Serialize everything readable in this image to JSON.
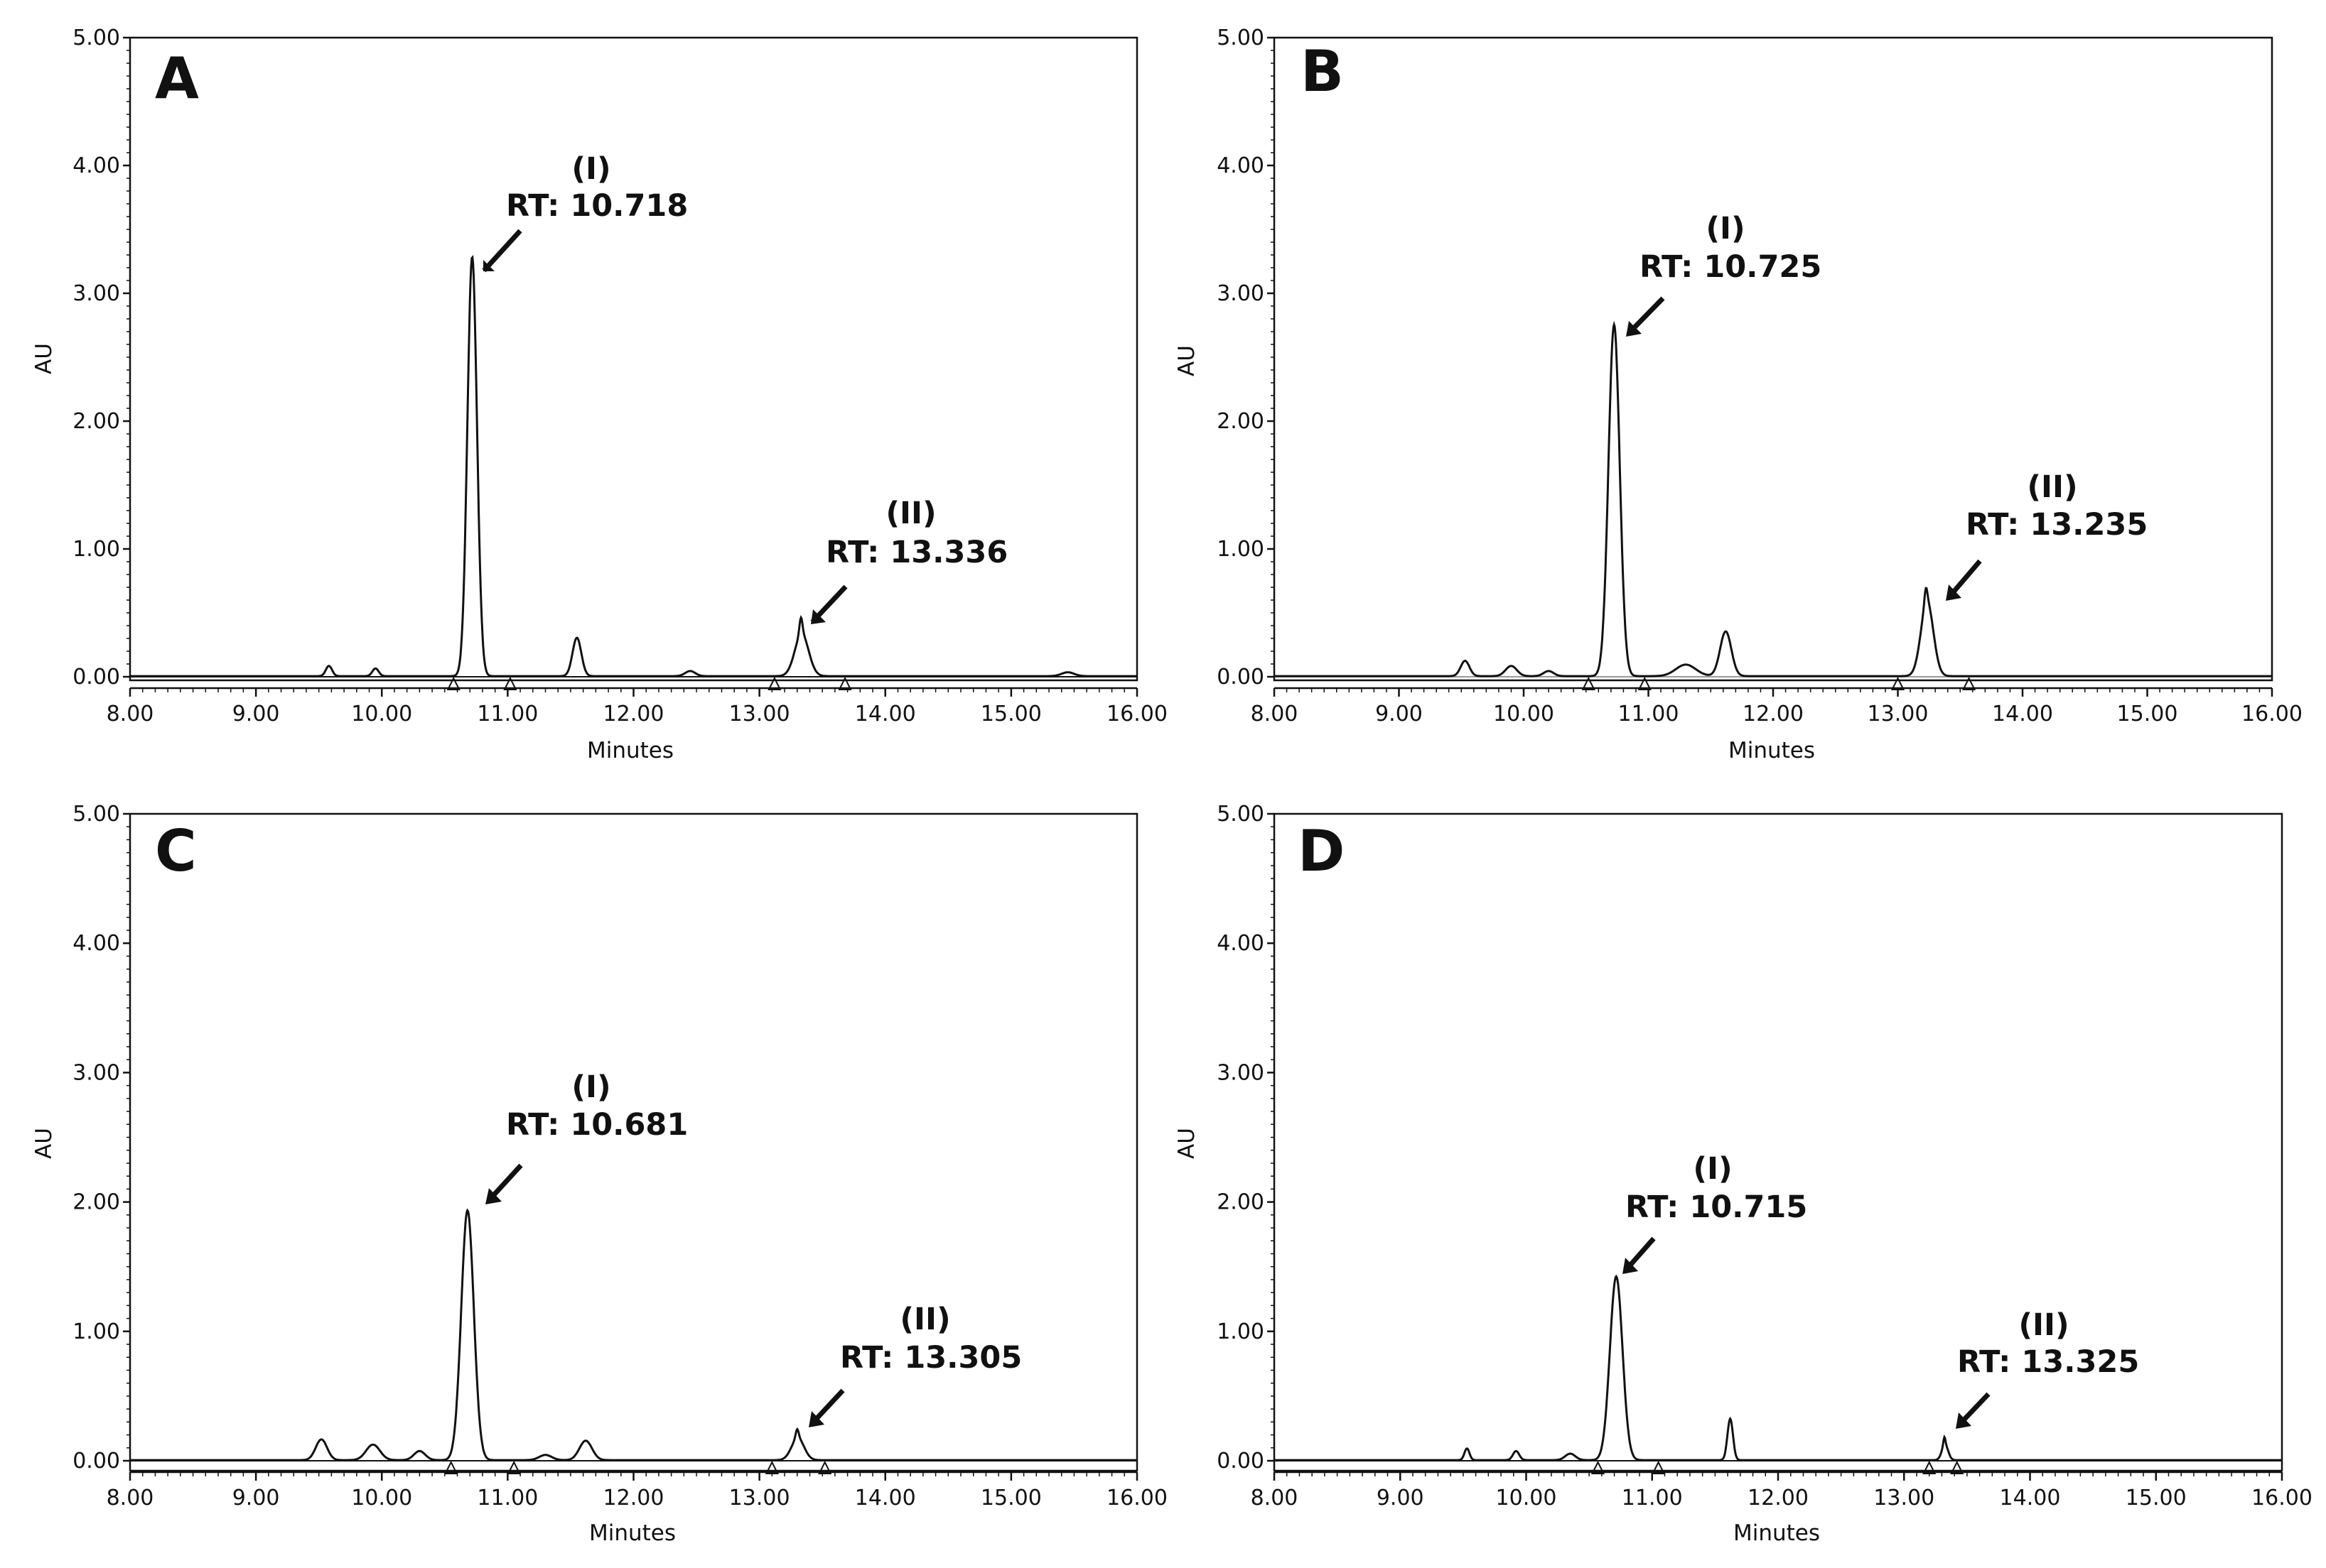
{
  "chart_data": [
    {
      "type": "line",
      "panel": "A",
      "xlabel": "Minutes",
      "ylabel": "AU",
      "xlim": [
        8.0,
        16.0
      ],
      "ylim": [
        0.0,
        5.0
      ],
      "xticks": [
        "8.00",
        "9.00",
        "10.00",
        "11.00",
        "12.00",
        "13.00",
        "14.00",
        "15.00",
        "16.00"
      ],
      "yticks": [
        "0.00",
        "1.00",
        "2.00",
        "3.00",
        "4.00",
        "5.00"
      ],
      "peaks": [
        {
          "rt": 9.58,
          "height": 0.08,
          "width": 0.025
        },
        {
          "rt": 9.95,
          "height": 0.06,
          "width": 0.025
        },
        {
          "rt": 10.718,
          "height": 3.28,
          "width": 0.038
        },
        {
          "rt": 11.55,
          "height": 0.3,
          "width": 0.035
        },
        {
          "rt": 12.45,
          "height": 0.04,
          "width": 0.04
        },
        {
          "rt": 13.336,
          "height": 0.33,
          "width": 0.055
        },
        {
          "rt": 13.33,
          "height": 0.13,
          "width": 0.012
        },
        {
          "rt": 15.45,
          "height": 0.03,
          "width": 0.05
        }
      ],
      "integration_marks": [
        10.57,
        11.02,
        13.12,
        13.68
      ],
      "annotations": [
        {
          "label": "(I)",
          "rt_label": "RT: 10.718",
          "rt": 10.718
        },
        {
          "label": "(II)",
          "rt_label": "RT: 13.336",
          "rt": 13.336
        }
      ]
    },
    {
      "type": "line",
      "panel": "B",
      "xlabel": "Minutes",
      "ylabel": "AU",
      "xlim": [
        8.0,
        16.0
      ],
      "ylim": [
        0.0,
        5.0
      ],
      "xticks": [
        "8.00",
        "9.00",
        "10.00",
        "11.00",
        "12.00",
        "13.00",
        "14.00",
        "15.00",
        "16.00"
      ],
      "yticks": [
        "0.00",
        "1.00",
        "2.00",
        "3.00",
        "4.00",
        "5.00"
      ],
      "peaks": [
        {
          "rt": 9.53,
          "height": 0.12,
          "width": 0.035
        },
        {
          "rt": 9.9,
          "height": 0.08,
          "width": 0.045
        },
        {
          "rt": 10.2,
          "height": 0.04,
          "width": 0.04
        },
        {
          "rt": 10.725,
          "height": 2.75,
          "width": 0.045
        },
        {
          "rt": 11.3,
          "height": 0.09,
          "width": 0.08
        },
        {
          "rt": 11.62,
          "height": 0.35,
          "width": 0.045
        },
        {
          "rt": 13.235,
          "height": 0.58,
          "width": 0.05
        },
        {
          "rt": 13.225,
          "height": 0.12,
          "width": 0.012
        }
      ],
      "integration_marks": [
        10.52,
        10.97,
        13.0,
        13.57
      ],
      "annotations": [
        {
          "label": "(I)",
          "rt_label": "RT: 10.725",
          "rt": 10.725
        },
        {
          "label": "(II)",
          "rt_label": "RT: 13.235",
          "rt": 13.235
        }
      ]
    },
    {
      "type": "line",
      "panel": "C",
      "xlabel": "Minutes",
      "ylabel": "AU",
      "xlim": [
        8.0,
        16.0
      ],
      "ylim": [
        0.0,
        5.0
      ],
      "xticks": [
        "8.00",
        "9.00",
        "10.00",
        "11.00",
        "12.00",
        "13.00",
        "14.00",
        "15.00",
        "16.00"
      ],
      "yticks": [
        "0.00",
        "1.00",
        "2.00",
        "3.00",
        "4.00",
        "5.00"
      ],
      "peaks": [
        {
          "rt": 9.52,
          "height": 0.16,
          "width": 0.045
        },
        {
          "rt": 9.93,
          "height": 0.12,
          "width": 0.055
        },
        {
          "rt": 10.3,
          "height": 0.07,
          "width": 0.045
        },
        {
          "rt": 10.681,
          "height": 1.93,
          "width": 0.05
        },
        {
          "rt": 11.3,
          "height": 0.04,
          "width": 0.05
        },
        {
          "rt": 11.62,
          "height": 0.15,
          "width": 0.05
        },
        {
          "rt": 13.305,
          "height": 0.17,
          "width": 0.05
        },
        {
          "rt": 13.3,
          "height": 0.07,
          "width": 0.012
        }
      ],
      "integration_marks": [
        10.55,
        11.05,
        13.1,
        13.52
      ],
      "annotations": [
        {
          "label": "(I)",
          "rt_label": "RT: 10.681",
          "rt": 10.681
        },
        {
          "label": "(II)",
          "rt_label": "RT: 13.305",
          "rt": 13.305
        }
      ]
    },
    {
      "type": "line",
      "panel": "D",
      "xlabel": "Minutes",
      "ylabel": "AU",
      "xlim": [
        8.0,
        16.0
      ],
      "ylim": [
        0.0,
        5.0
      ],
      "xticks": [
        "8.00",
        "9.00",
        "10.00",
        "11.00",
        "12.00",
        "13.00",
        "14.00",
        "15.00",
        "16.00"
      ],
      "yticks": [
        "0.00",
        "1.00",
        "2.00",
        "3.00",
        "4.00",
        "5.00"
      ],
      "peaks": [
        {
          "rt": 9.53,
          "height": 0.09,
          "width": 0.02
        },
        {
          "rt": 9.92,
          "height": 0.07,
          "width": 0.025
        },
        {
          "rt": 10.35,
          "height": 0.05,
          "width": 0.04
        },
        {
          "rt": 10.715,
          "height": 1.42,
          "width": 0.05
        },
        {
          "rt": 11.62,
          "height": 0.32,
          "width": 0.022
        },
        {
          "rt": 13.325,
          "height": 0.12,
          "width": 0.025
        },
        {
          "rt": 13.32,
          "height": 0.06,
          "width": 0.008
        }
      ],
      "integration_marks": [
        10.57,
        11.05,
        13.2,
        13.42
      ],
      "annotations": [
        {
          "label": "(I)",
          "rt_label": "RT: 10.715",
          "rt": 10.715
        },
        {
          "label": "(II)",
          "rt_label": "RT: 13.325",
          "rt": 13.325
        }
      ]
    }
  ]
}
